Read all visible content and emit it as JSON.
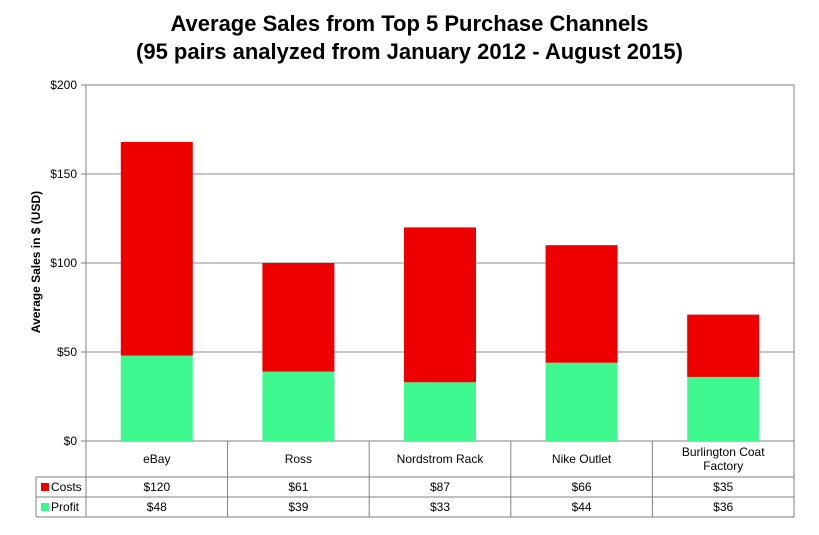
{
  "title_line1": "Average Sales from Top 5 Purchase Channels",
  "title_line2": "(95 pairs analyzed from January 2012 - August 2015)",
  "chart_data": {
    "type": "bar",
    "stacked": true,
    "title": "Average Sales from Top 5 Purchase Channels (95 pairs analyzed from January 2012 - August 2015)",
    "xlabel": "",
    "ylabel": "Average Sales in $ (USD)",
    "ylim": [
      0,
      200
    ],
    "yticks": [
      0,
      50,
      100,
      150,
      200
    ],
    "ytick_labels": [
      "$0",
      "$50",
      "$100",
      "$150",
      "$200"
    ],
    "grid": true,
    "legend": "data-table",
    "categories": [
      "eBay",
      "Ross",
      "Nordstrom Rack",
      "Nike Outlet",
      "Burlington Coat Factory"
    ],
    "category_lines": [
      [
        "eBay"
      ],
      [
        "Ross"
      ],
      [
        "Nordstrom Rack"
      ],
      [
        "Nike Outlet"
      ],
      [
        "Burlington Coat",
        "Factory"
      ]
    ],
    "series": [
      {
        "name": "Profit",
        "color": "#40f890",
        "values": [
          48,
          39,
          33,
          44,
          36
        ],
        "labels": [
          "$48",
          "$39",
          "$33",
          "$44",
          "$36"
        ]
      },
      {
        "name": "Costs",
        "color": "#ee0000",
        "values": [
          120,
          61,
          87,
          66,
          35
        ],
        "labels": [
          "$120",
          "$61",
          "$87",
          "$66",
          "$35"
        ]
      }
    ],
    "table_order": [
      "Costs",
      "Profit"
    ]
  }
}
